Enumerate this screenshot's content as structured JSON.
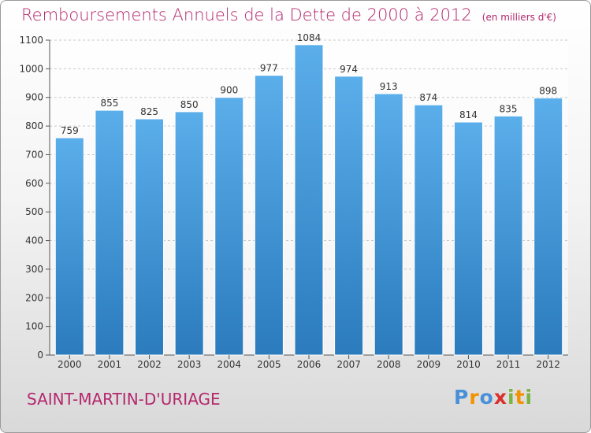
{
  "header": {
    "title": "Remboursements Annuels de la Dette de 2000 à 2012",
    "unit": "(en milliers d'€)"
  },
  "footer": {
    "commune": "SAINT-MARTIN-D'URIAGE",
    "logo_text": "Proxiti"
  },
  "chart_data": {
    "type": "bar",
    "title": "Remboursements Annuels de la Dette de 2000 à 2012",
    "subtitle": "(en milliers d'€)",
    "xlabel": "",
    "ylabel": "",
    "categories": [
      "2000",
      "2001",
      "2002",
      "2003",
      "2004",
      "2005",
      "2006",
      "2007",
      "2008",
      "2009",
      "2010",
      "2011",
      "2012"
    ],
    "values": [
      759,
      855,
      825,
      850,
      900,
      977,
      1084,
      974,
      913,
      874,
      814,
      835,
      898
    ],
    "ylim": [
      0,
      1100
    ],
    "yticks": [
      0,
      100,
      200,
      300,
      400,
      500,
      600,
      700,
      800,
      900,
      1000,
      1100
    ],
    "grid": true,
    "data_labels": true,
    "bar_color_top": "#5aaeea",
    "bar_color_bottom": "#2b7bbd",
    "text_color": "#b4286e"
  }
}
